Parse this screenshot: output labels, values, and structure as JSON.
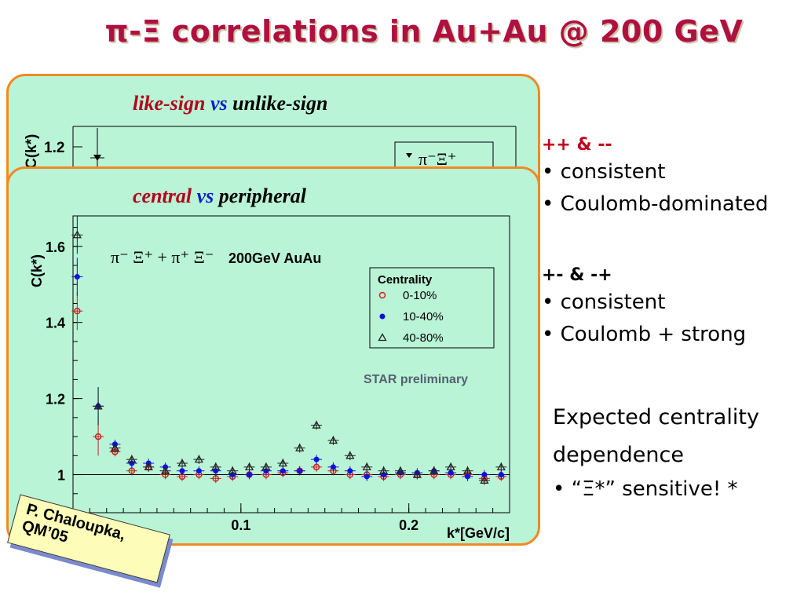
{
  "title": "π-Ξ correlations in Au+Au @ 200 GeV",
  "back_panel": {
    "title_a": "like-sign",
    "title_vs": "vs",
    "title_b": "unlike-sign",
    "ylabel": "C(k*)",
    "tick": "1.2",
    "legend": "π⁻Ξ⁺"
  },
  "front_panel": {
    "title_a": "central",
    "title_vs": "vs",
    "title_b": "peripheral",
    "reaction": "π⁻ Ξ⁺ + π⁺ Ξ⁻",
    "energy": "200GeV AuAu",
    "preliminary": "STAR preliminary"
  },
  "chart_data": {
    "type": "scatter",
    "xlabel": "k*[GeV/c]",
    "ylabel": "C(k*)",
    "xlim": [
      0,
      0.26
    ],
    "ylim": [
      0.9,
      1.68
    ],
    "xticks": [
      "0",
      "0.1",
      "0.2"
    ],
    "yticks": [
      "1",
      "1.2",
      "1.4",
      "1.6"
    ],
    "legend_title": "Centrality",
    "legend_position": "top-right",
    "series": [
      {
        "name": "0-10%",
        "marker": "open-circle",
        "color": "#cc2020",
        "x": [
          0.0025,
          0.015,
          0.025,
          0.035,
          0.045,
          0.055,
          0.065,
          0.075,
          0.085,
          0.095,
          0.105,
          0.115,
          0.125,
          0.135,
          0.145,
          0.155,
          0.165,
          0.175,
          0.185,
          0.195,
          0.205,
          0.215,
          0.225,
          0.235,
          0.245,
          0.255
        ],
        "y": [
          1.43,
          1.1,
          1.06,
          1.01,
          1.02,
          1.0,
          0.995,
          1.0,
          0.99,
          0.995,
          1.0,
          1.0,
          1.005,
          1.01,
          1.02,
          1.01,
          1.0,
          1.0,
          0.995,
          1.0,
          1.0,
          1.0,
          1.0,
          1.0,
          0.99,
          0.995
        ]
      },
      {
        "name": "10-40%",
        "marker": "filled-circle",
        "color": "#1010dd",
        "x": [
          0.0025,
          0.015,
          0.025,
          0.035,
          0.045,
          0.055,
          0.065,
          0.075,
          0.085,
          0.095,
          0.105,
          0.115,
          0.125,
          0.135,
          0.145,
          0.155,
          0.165,
          0.175,
          0.185,
          0.195,
          0.205,
          0.215,
          0.225,
          0.235,
          0.245,
          0.255
        ],
        "y": [
          1.52,
          1.18,
          1.08,
          1.03,
          1.03,
          1.02,
          1.01,
          1.01,
          1.01,
          1.0,
          1.0,
          1.01,
          1.01,
          1.01,
          1.04,
          1.02,
          1.01,
          0.995,
          1.0,
          1.005,
          1.005,
          1.01,
          1.005,
          0.995,
          1.0,
          1.0
        ]
      },
      {
        "name": "40-80%",
        "marker": "open-triangle",
        "color": "#222222",
        "x": [
          0.0025,
          0.015,
          0.025,
          0.035,
          0.045,
          0.055,
          0.065,
          0.075,
          0.085,
          0.095,
          0.105,
          0.115,
          0.125,
          0.135,
          0.145,
          0.155,
          0.165,
          0.175,
          0.185,
          0.195,
          0.205,
          0.215,
          0.225,
          0.235,
          0.245,
          0.255
        ],
        "y": [
          1.63,
          1.18,
          1.07,
          1.04,
          1.02,
          1.01,
          1.03,
          1.04,
          1.02,
          1.01,
          1.02,
          1.02,
          1.03,
          1.07,
          1.13,
          1.09,
          1.05,
          1.02,
          1.01,
          1.01,
          1.0,
          1.01,
          1.02,
          1.01,
          0.985,
          1.02
        ]
      }
    ]
  },
  "right_text": {
    "like_head": "++ & --",
    "like_items": [
      "consistent",
      "Coulomb-dominated"
    ],
    "unlike_head": "+- & -+",
    "unlike_items": [
      "consistent",
      "Coulomb + strong"
    ],
    "expected_1": "Expected centrality",
    "expected_2": "dependence",
    "sensitive": "“Ξ*” sensitive! *"
  },
  "credit": {
    "line1": "P. Chaloupka,",
    "line2": "QM’05"
  },
  "colors": {
    "panel_bg": "#b9f4d6",
    "panel_border": "#f08a24",
    "title": "#b01040"
  }
}
